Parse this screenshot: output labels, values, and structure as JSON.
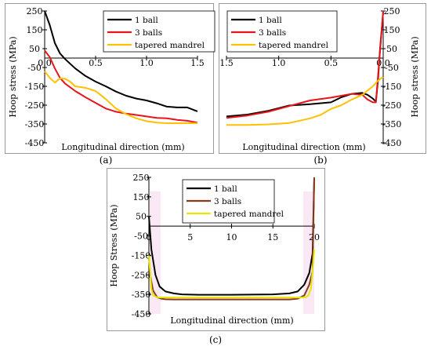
{
  "chart_data": [
    {
      "id": "a",
      "type": "line",
      "panel_label": "(a)",
      "xlabel": "Longitudinal direction (mm)",
      "ylabel": "Hoop stress (MPa)",
      "xlim": [
        0,
        1.5
      ],
      "ylim": [
        -450,
        250
      ],
      "x_ticks": [
        "0.0",
        "0.5",
        "1.0",
        "1.5"
      ],
      "y_ticks": [
        "250",
        "150",
        "50",
        "-50",
        "-150",
        "-250",
        "-350",
        "-450"
      ],
      "legend_position": "top-right",
      "series": [
        {
          "name": "1 ball",
          "color": "#000000",
          "x": [
            0,
            0.05,
            0.1,
            0.15,
            0.2,
            0.3,
            0.4,
            0.5,
            0.6,
            0.7,
            0.8,
            0.9,
            1.0,
            1.1,
            1.2,
            1.3,
            1.4,
            1.5
          ],
          "y": [
            250,
            175,
            80,
            25,
            -5,
            -55,
            -95,
            -125,
            -150,
            -178,
            -200,
            -215,
            -225,
            -240,
            -258,
            -262,
            -262,
            -283
          ]
        },
        {
          "name": "3 balls",
          "color": "#e8141a",
          "x": [
            0,
            0.05,
            0.1,
            0.15,
            0.2,
            0.3,
            0.4,
            0.5,
            0.6,
            0.7,
            0.8,
            0.9,
            1.0,
            1.1,
            1.2,
            1.3,
            1.4,
            1.5
          ],
          "y": [
            40,
            5,
            -55,
            -105,
            -135,
            -175,
            -208,
            -238,
            -268,
            -285,
            -295,
            -302,
            -310,
            -318,
            -320,
            -328,
            -333,
            -343
          ]
        },
        {
          "name": "tapered mandrel",
          "color": "#ffc000",
          "x": [
            0,
            0.05,
            0.1,
            0.15,
            0.2,
            0.25,
            0.3,
            0.4,
            0.5,
            0.6,
            0.7,
            0.8,
            0.9,
            1.0,
            1.1,
            1.2,
            1.3,
            1.4,
            1.5
          ],
          "y": [
            -70,
            -105,
            -130,
            -108,
            -110,
            -125,
            -150,
            -158,
            -175,
            -218,
            -268,
            -298,
            -320,
            -335,
            -343,
            -346,
            -346,
            -346,
            -346
          ]
        }
      ]
    },
    {
      "id": "b",
      "type": "line",
      "panel_label": "(b)",
      "xlabel": "Longitudinal direction (mm)",
      "ylabel": "Hoop stress (MPa)",
      "xlim": [
        1.5,
        0
      ],
      "ylim": [
        -450,
        250
      ],
      "x_ticks": [
        "1.5",
        "1.0",
        "0.5",
        "0.0"
      ],
      "y_ticks": [
        "250",
        "150",
        "50",
        "-50",
        "-150",
        "-250",
        "-350",
        "-450"
      ],
      "legend_position": "top-left",
      "series": [
        {
          "name": "1 ball",
          "color": "#000000",
          "x": [
            1.5,
            1.3,
            1.1,
            0.9,
            0.7,
            0.5,
            0.4,
            0.3,
            0.2,
            0.15,
            0.1,
            0.07,
            0.05,
            0.03,
            0.0
          ],
          "y": [
            -310,
            -300,
            -280,
            -252,
            -245,
            -235,
            -208,
            -190,
            -185,
            -195,
            -215,
            -230,
            -120,
            50,
            245
          ]
        },
        {
          "name": "3 balls",
          "color": "#e8141a",
          "x": [
            1.5,
            1.3,
            1.1,
            0.9,
            0.7,
            0.5,
            0.4,
            0.3,
            0.2,
            0.15,
            0.1,
            0.07,
            0.05,
            0.03,
            0.0
          ],
          "y": [
            -318,
            -305,
            -285,
            -255,
            -225,
            -210,
            -200,
            -190,
            -195,
            -220,
            -235,
            -235,
            -100,
            40,
            250
          ]
        },
        {
          "name": "tapered mandrel",
          "color": "#ffc000",
          "x": [
            1.5,
            1.3,
            1.1,
            0.9,
            0.7,
            0.6,
            0.5,
            0.4,
            0.3,
            0.2,
            0.1,
            0.05,
            0.0
          ],
          "y": [
            -355,
            -355,
            -352,
            -345,
            -320,
            -302,
            -270,
            -250,
            -220,
            -195,
            -150,
            -120,
            -100
          ]
        }
      ]
    },
    {
      "id": "c",
      "type": "line",
      "panel_label": "(c)",
      "xlabel": "Longitudinal direction (mm)",
      "ylabel": "Hoop Stress (MPa)",
      "xlim": [
        0,
        20
      ],
      "ylim": [
        -450,
        250
      ],
      "x_ticks": [
        "0",
        "5",
        "10",
        "15",
        "20"
      ],
      "y_ticks": [
        "250",
        "150",
        "50",
        "-50",
        "-150",
        "-250",
        "-350",
        "-450"
      ],
      "legend_position": "top-center",
      "series": [
        {
          "name": "1 ball",
          "color": "#000000",
          "x": [
            0,
            0.3,
            0.8,
            1.3,
            2,
            3,
            4,
            6,
            10,
            15,
            17,
            18,
            18.8,
            19.4,
            19.8,
            20
          ],
          "y": [
            50,
            -120,
            -250,
            -310,
            -335,
            -345,
            -350,
            -352,
            -352,
            -350,
            -345,
            -335,
            -300,
            -240,
            -140,
            250
          ]
        },
        {
          "name": "3 balls",
          "color": "#8b3a1a",
          "x": [
            0,
            0.2,
            0.5,
            1,
            1.5,
            2,
            3,
            5,
            10,
            15,
            17,
            18,
            18.8,
            19.4,
            19.8,
            20
          ],
          "y": [
            -160,
            -260,
            -330,
            -365,
            -372,
            -375,
            -376,
            -376,
            -376,
            -376,
            -376,
            -372,
            -355,
            -300,
            -230,
            250
          ]
        },
        {
          "name": "tapered mandrel",
          "color": "#e6e600",
          "x": [
            0,
            0.3,
            0.5,
            1,
            2,
            5,
            10,
            15,
            17,
            18,
            18.5,
            19,
            19.3,
            19.6,
            19.8,
            20
          ],
          "y": [
            -150,
            -320,
            -355,
            -365,
            -366,
            -366,
            -366,
            -366,
            -366,
            -366,
            -366,
            -364,
            -355,
            -320,
            -230,
            -120
          ]
        }
      ]
    }
  ]
}
